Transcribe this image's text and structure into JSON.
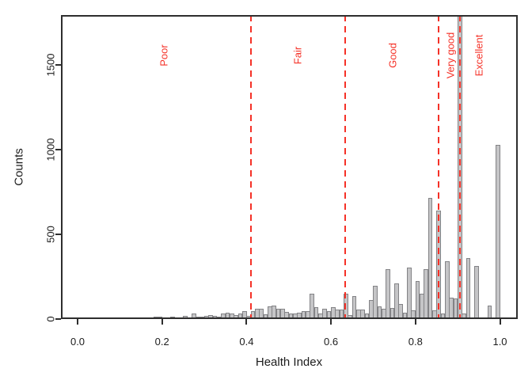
{
  "figure": {
    "background": "#ffffff",
    "axis_color": "#2e2e2e",
    "text_color": "#1c1c1c"
  },
  "chart_data": {
    "type": "bar",
    "subtype": "histogram",
    "title": "",
    "xlabel": "Health Index",
    "ylabel": "Counts",
    "xlim": [
      -0.04,
      1.04
    ],
    "ylim": [
      0,
      1795
    ],
    "grid": "off",
    "x_ticks": [
      0.0,
      0.2,
      0.4,
      0.6,
      0.8,
      1.0
    ],
    "x_tick_labels": [
      "0.0",
      "0.2",
      "0.4",
      "0.6",
      "0.8",
      "1.0"
    ],
    "y_ticks": [
      0,
      500,
      1000,
      1500
    ],
    "y_tick_labels": [
      "0",
      "500",
      "1000",
      "1500"
    ],
    "bar_fill": "#c5c5c7",
    "bar_border": "#838386",
    "accent_red": "#f53127",
    "bin_width": 0.01,
    "bin_start": 0.13,
    "bins": [
      4,
      2,
      0,
      0,
      2,
      12,
      12,
      8,
      5,
      16,
      5,
      9,
      20,
      9,
      31,
      16,
      12,
      19,
      25,
      19,
      12,
      31,
      39,
      34,
      22,
      34,
      47,
      19,
      47,
      59,
      59,
      28,
      75,
      81,
      59,
      59,
      44,
      31,
      34,
      39,
      47,
      47,
      148,
      70,
      31,
      59,
      47,
      70,
      55,
      55,
      150,
      22,
      135,
      55,
      58,
      35,
      110,
      195,
      75,
      62,
      296,
      65,
      209,
      89,
      37,
      304,
      50,
      226,
      148,
      296,
      717,
      50,
      640,
      34,
      343,
      128,
      120,
      1800,
      35,
      360,
      8,
      315,
      0,
      0,
      80,
      0,
      1030
    ],
    "threshold_lines": [
      0.41,
      0.633,
      0.854,
      0.905
    ],
    "categories": [
      {
        "label": "Poor",
        "x": 0.204
      },
      {
        "label": "Fair",
        "x": 0.521
      },
      {
        "label": "Good",
        "x": 0.746
      },
      {
        "label": "Very good",
        "x": 0.882
      },
      {
        "label": "Excellent",
        "x": 0.951
      }
    ]
  }
}
